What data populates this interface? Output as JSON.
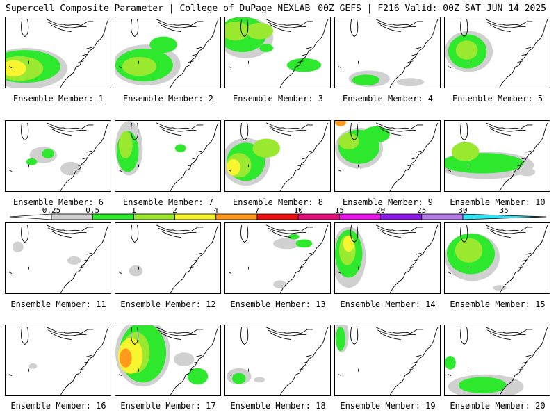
{
  "header": {
    "left": "Supercell Composite Parameter | College of DuPage NEXLAB",
    "right": "00Z GEFS | F216 Valid: 00Z SAT JUN 14 2025"
  },
  "colorbar": {
    "labels": [
      "0.25",
      "0.5",
      "1",
      "2",
      "4",
      "7",
      "10",
      "15",
      "20",
      "25",
      "30",
      "35"
    ],
    "colors": [
      "#ffffff",
      "#d0d0d0",
      "#2ee82e",
      "#9be830",
      "#f6f530",
      "#ff9a1a",
      "#ee1111",
      "#e2127a",
      "#e815e8",
      "#8a1ae6",
      "#b47ae6",
      "#34e2f4"
    ]
  },
  "panels": [
    {
      "caption": "Ensemble Member: 1"
    },
    {
      "caption": "Ensemble Member: 2"
    },
    {
      "caption": "Ensemble Member: 3"
    },
    {
      "caption": "Ensemble Member: 4"
    },
    {
      "caption": "Ensemble Member: 5"
    },
    {
      "caption": "Ensemble Member: 6"
    },
    {
      "caption": "Ensemble Member: 7"
    },
    {
      "caption": "Ensemble Member: 8"
    },
    {
      "caption": "Ensemble Member: 9"
    },
    {
      "caption": "Ensemble Member: 10"
    },
    {
      "caption": "Ensemble Member: 11"
    },
    {
      "caption": "Ensemble Member: 12"
    },
    {
      "caption": "Ensemble Member: 13"
    },
    {
      "caption": "Ensemble Member: 14"
    },
    {
      "caption": "Ensemble Member: 15"
    },
    {
      "caption": "Ensemble Member: 16"
    },
    {
      "caption": "Ensemble Member: 17"
    },
    {
      "caption": "Ensemble Member: 18"
    },
    {
      "caption": "Ensemble Member: 19"
    },
    {
      "caption": "Ensemble Member: 20"
    }
  ]
}
